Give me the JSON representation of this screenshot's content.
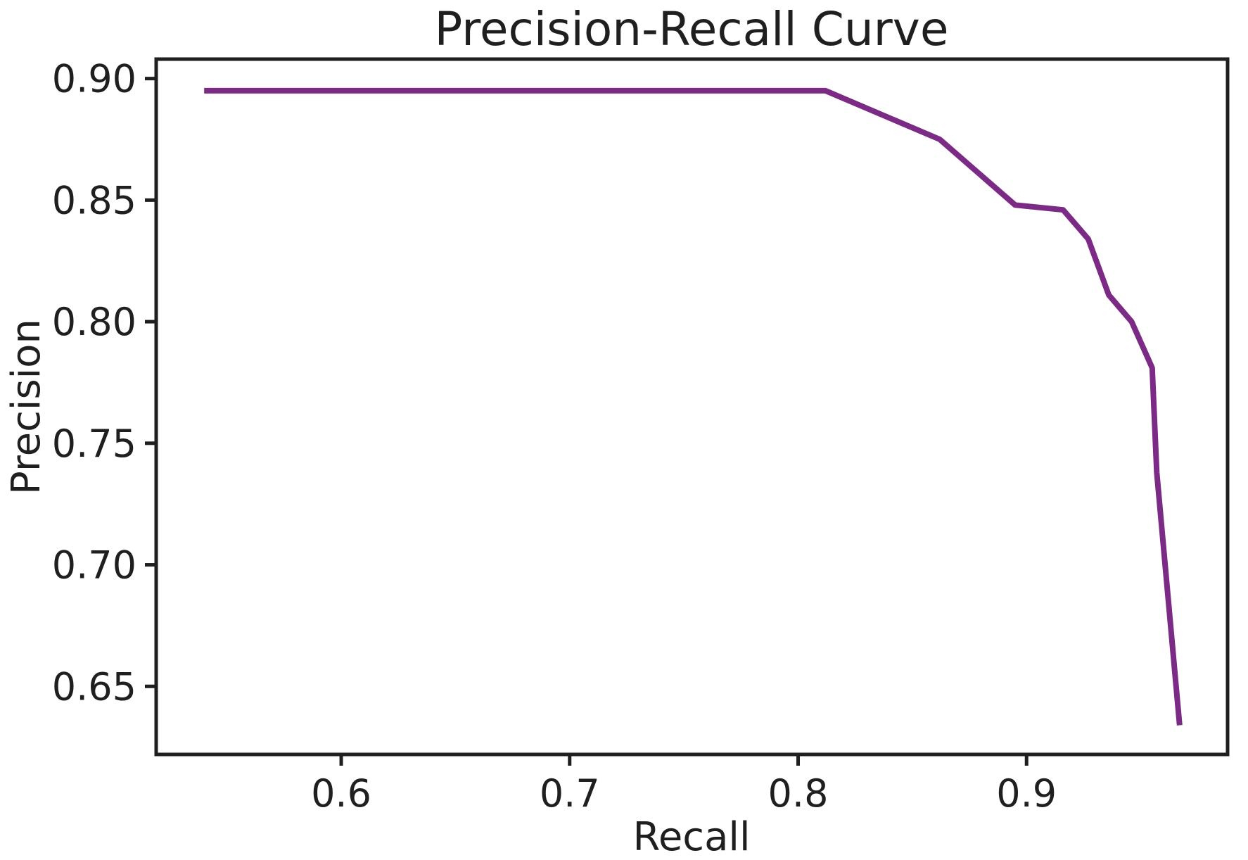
{
  "page": {
    "background": "#ffffff"
  },
  "chart_data": {
    "type": "line",
    "title": "Precision-Recall Curve",
    "xlabel": "Recall",
    "ylabel": "Precision",
    "xlim": [
      0.519,
      0.988
    ],
    "ylim": [
      0.622,
      0.908
    ],
    "grid": false,
    "legend": "none",
    "axis_color": "#1f1f1f",
    "xticks": {
      "values": [
        0.6,
        0.7,
        0.8,
        0.9
      ],
      "labels": [
        "0.6",
        "0.7",
        "0.8",
        "0.9"
      ]
    },
    "yticks": {
      "values": [
        0.65,
        0.7,
        0.75,
        0.8,
        0.85,
        0.9
      ],
      "labels": [
        "0.65",
        "0.70",
        "0.75",
        "0.80",
        "0.85",
        "0.90"
      ]
    },
    "series": [
      {
        "name": "precision-recall-curve",
        "color": "#7b2a86",
        "x": [
          0.54,
          0.812,
          0.862,
          0.895,
          0.916,
          0.927,
          0.936,
          0.946,
          0.955,
          0.957,
          0.967
        ],
        "y": [
          0.895,
          0.895,
          0.875,
          0.848,
          0.846,
          0.834,
          0.811,
          0.8,
          0.781,
          0.738,
          0.634
        ]
      }
    ]
  }
}
